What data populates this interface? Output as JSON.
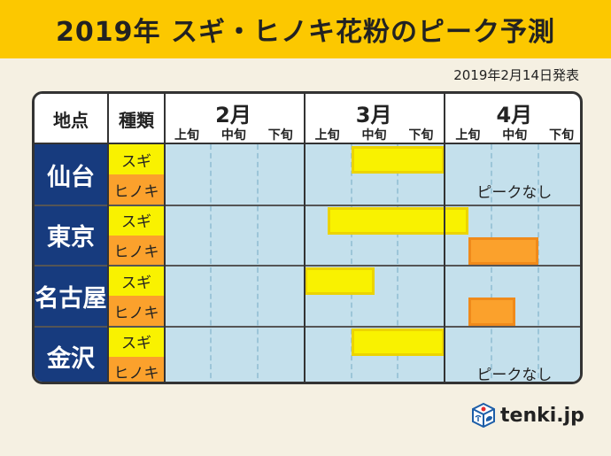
{
  "title": "2019年 スギ・ヒノキ花粉のピーク予測",
  "date": "2019年2月14日発表",
  "chart_data": {
    "type": "table",
    "headers": {
      "location": "地点",
      "type": "種類"
    },
    "months": [
      "2月",
      "3月",
      "4月"
    ],
    "dekads": [
      "上旬",
      "中旬",
      "下旬"
    ],
    "period_unit": "dekads from 2月上旬 start (0 = 2月上旬 start, 9 = 4月下旬 end)",
    "rows": [
      {
        "city": "仙台",
        "pollen": [
          {
            "kind": "スギ",
            "start": 4,
            "end": 6
          },
          {
            "kind": "ヒノキ",
            "note": "ピークなし"
          }
        ]
      },
      {
        "city": "東京",
        "pollen": [
          {
            "kind": "スギ",
            "start": 3.5,
            "end": 6.5
          },
          {
            "kind": "ヒノキ",
            "start": 6.5,
            "end": 8
          }
        ]
      },
      {
        "city": "名古屋",
        "pollen": [
          {
            "kind": "スギ",
            "start": 3,
            "end": 4.5
          },
          {
            "kind": "ヒノキ",
            "start": 6.5,
            "end": 7.5
          }
        ]
      },
      {
        "city": "金沢",
        "pollen": [
          {
            "kind": "スギ",
            "start": 4,
            "end": 6
          },
          {
            "kind": "ヒノキ",
            "note": "ピークなし"
          }
        ]
      }
    ]
  },
  "colors": {
    "sugi": "#f9f200",
    "sugi_border": "#ecd400",
    "hinoki": "#fba12c",
    "hinoki_border": "#f08a1a",
    "city_bg": "#173b7e",
    "grid_bg": "#c4e0ec",
    "title_bg": "#fcc800"
  },
  "logo": {
    "text": "tenki.jp"
  }
}
